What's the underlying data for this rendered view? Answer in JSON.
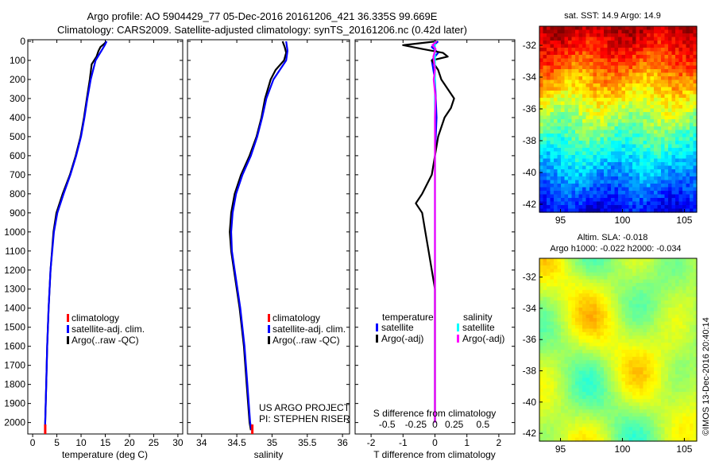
{
  "header": {
    "line1": "Argo profile: AO 5904429_77 05-Dec-2016 20161206_421 36.335S 99.669E",
    "line2": "Climatology: CARS2009. Satellite-adjusted climatology: synTS_20161206.nc (0.42d later)"
  },
  "colors": {
    "climatology": "#ff0000",
    "satellite": "#0000ff",
    "argo": "#000000",
    "sat_salinity": "#00ffff",
    "argo_adj_salinity": "#ff00ff"
  },
  "chart_data": [
    {
      "type": "line",
      "panel": "temperature",
      "xlabel": "temperature (deg C)",
      "xlim": [
        -1,
        31
      ],
      "xticks": [
        0,
        5,
        10,
        15,
        20,
        25,
        30
      ],
      "ylim": [
        2060,
        0
      ],
      "yticks": [
        0,
        100,
        200,
        300,
        400,
        500,
        600,
        700,
        800,
        900,
        1000,
        1100,
        1200,
        1300,
        1400,
        1500,
        1600,
        1700,
        1800,
        1900,
        2000
      ],
      "y_inverted": true,
      "legend": [
        "climatology",
        "satellite-adj. clim.",
        "Argo(..raw -QC)"
      ],
      "series": [
        {
          "name": "Argo(..raw -QC)",
          "color": "#000000",
          "depth": [
            0,
            10,
            30,
            50,
            80,
            120,
            200,
            300,
            400,
            500,
            600,
            700,
            800,
            900,
            1000,
            1200,
            1400,
            1600,
            1800,
            2000,
            2040
          ],
          "values": [
            15.2,
            14.9,
            14.0,
            13.6,
            13.2,
            12.2,
            11.8,
            11.2,
            10.6,
            9.9,
            8.9,
            7.7,
            6.2,
            4.9,
            4.3,
            3.7,
            3.3,
            3.0,
            2.8,
            2.6,
            2.6
          ]
        },
        {
          "name": "satellite-adj. clim.",
          "color": "#0000ff",
          "depth": [
            0,
            20,
            50,
            100,
            200,
            300,
            400,
            500,
            600,
            700,
            800,
            900,
            1000,
            1200,
            1400,
            1600,
            1800,
            2000,
            2040
          ],
          "values": [
            15.3,
            14.9,
            14.2,
            13.0,
            12.0,
            11.3,
            10.7,
            10.0,
            9.0,
            7.8,
            6.4,
            5.1,
            4.4,
            3.7,
            3.3,
            3.0,
            2.8,
            2.6,
            2.6
          ]
        },
        {
          "name": "climatology",
          "color": "#ff0000",
          "depth": [
            2010,
            2060
          ],
          "values": [
            2.6,
            2.6
          ]
        }
      ]
    },
    {
      "type": "line",
      "panel": "salinity",
      "xlabel": "salinity",
      "xlim": [
        33.8,
        36.1
      ],
      "xticks": [
        34,
        34.5,
        35,
        35.5,
        36
      ],
      "ylim": [
        2060,
        0
      ],
      "y_inverted": true,
      "legend": [
        "climatology",
        "satellite-adj. clim.",
        "Argo(..raw -QC)"
      ],
      "annotations": [
        "US ARGO PROJECT",
        "PI: STEPHEN RISER"
      ],
      "series": [
        {
          "name": "Argo(..raw -QC)",
          "color": "#000000",
          "depth": [
            0,
            30,
            60,
            100,
            150,
            200,
            300,
            400,
            500,
            600,
            700,
            800,
            900,
            1000,
            1100,
            1200,
            1400,
            1600,
            1800,
            2000,
            2040
          ],
          "values": [
            35.15,
            35.18,
            35.2,
            35.17,
            35.05,
            34.98,
            34.9,
            34.85,
            34.78,
            34.68,
            34.56,
            34.47,
            34.42,
            34.4,
            34.42,
            34.46,
            34.54,
            34.6,
            34.64,
            34.68,
            34.7
          ]
        },
        {
          "name": "satellite-adj. clim.",
          "color": "#0000ff",
          "depth": [
            0,
            50,
            100,
            200,
            300,
            400,
            500,
            600,
            700,
            800,
            900,
            1000,
            1100,
            1200,
            1400,
            1600,
            1800,
            2000,
            2040
          ],
          "values": [
            35.2,
            35.22,
            35.2,
            35.02,
            34.92,
            34.86,
            34.79,
            34.7,
            34.58,
            34.49,
            34.44,
            34.42,
            34.43,
            34.47,
            34.55,
            34.61,
            34.65,
            34.69,
            34.71
          ]
        },
        {
          "name": "climatology",
          "color": "#ff0000",
          "depth": [
            2010,
            2060
          ],
          "values": [
            34.72,
            34.72
          ]
        }
      ]
    },
    {
      "type": "line",
      "panel": "difference",
      "xlabel": "T difference from climatology",
      "xlim": [
        -2.5,
        2.5
      ],
      "xticks": [
        -2,
        -1,
        0,
        1,
        2
      ],
      "top_xlabel": "S difference from climatology",
      "top_xticks": [
        "-0.5",
        "-0.25",
        "0",
        "0.25",
        "0.5"
      ],
      "ylim": [
        2060,
        0
      ],
      "y_inverted": true,
      "legend_temperature_title": "temperature",
      "legend_salinity_title": "salinity",
      "legend_temperature": [
        "satellite",
        "Argo(-adj)"
      ],
      "legend_salinity": [
        "satellite",
        "Argo(-adj)"
      ],
      "series": [
        {
          "name": "T satellite",
          "color": "#0000ff",
          "depth": [
            0,
            30,
            60,
            100,
            200,
            400,
            600,
            800,
            1000,
            1400,
            2000
          ],
          "values": [
            0.1,
            -0.1,
            0.1,
            -0.1,
            0.0,
            0.05,
            0.0,
            0.0,
            0.0,
            0.0,
            0.0
          ]
        },
        {
          "name": "T Argo(-adj)",
          "color": "#000000",
          "depth": [
            0,
            20,
            40,
            60,
            80,
            100,
            150,
            200,
            300,
            350,
            400,
            500,
            600,
            700,
            800,
            850,
            900,
            1000,
            1100,
            1200,
            1300,
            1500,
            1800,
            2000
          ],
          "values": [
            0.05,
            -1.0,
            -0.4,
            0.25,
            0.4,
            -0.1,
            0.1,
            0.2,
            0.6,
            0.5,
            0.3,
            0.1,
            0.0,
            -0.1,
            -0.4,
            -0.6,
            -0.4,
            -0.3,
            -0.2,
            -0.1,
            0.0,
            0.0,
            0.0,
            0.0
          ]
        },
        {
          "name": "S satellite",
          "color": "#00ffff",
          "depth": [
            0,
            100,
            300,
            600,
            1000,
            1500,
            2000
          ],
          "values": [
            0.0,
            0.0,
            0.0,
            0.0,
            0.0,
            0.0,
            0.0
          ]
        },
        {
          "name": "S Argo(-adj)",
          "color": "#ff00ff",
          "depth": [
            0,
            20,
            40,
            80,
            150,
            200,
            300,
            400,
            600,
            1000,
            1400,
            2000
          ],
          "values": [
            0.05,
            -0.08,
            0.02,
            -0.05,
            0.0,
            -0.04,
            0.02,
            0.0,
            0.0,
            0.0,
            0.0,
            0.0
          ]
        }
      ]
    },
    {
      "type": "heatmap",
      "panel": "sst",
      "title": "sat. SST: 14.9 Argo: 14.9",
      "xticks": [
        95,
        100,
        105
      ],
      "yticks": [
        -32,
        -34,
        -36,
        -38,
        -40,
        -42
      ],
      "xlim": [
        93.3,
        106
      ],
      "ylim": [
        -42.5,
        -30.8
      ],
      "colormap": "jet"
    },
    {
      "type": "heatmap",
      "panel": "sla",
      "title_line1": "Altim. SLA: -0.018",
      "title_line2": "Argo h1000: -0.022 h2000: -0.034",
      "xticks": [
        95,
        100,
        105
      ],
      "yticks": [
        -32,
        -34,
        -36,
        -38,
        -40,
        -42
      ],
      "xlim": [
        93.3,
        106
      ],
      "ylim": [
        -42.5,
        -30.8
      ],
      "colormap": "jet"
    }
  ],
  "footer_stamp": "©IMOS 13-Dec-2016 20:40:14"
}
